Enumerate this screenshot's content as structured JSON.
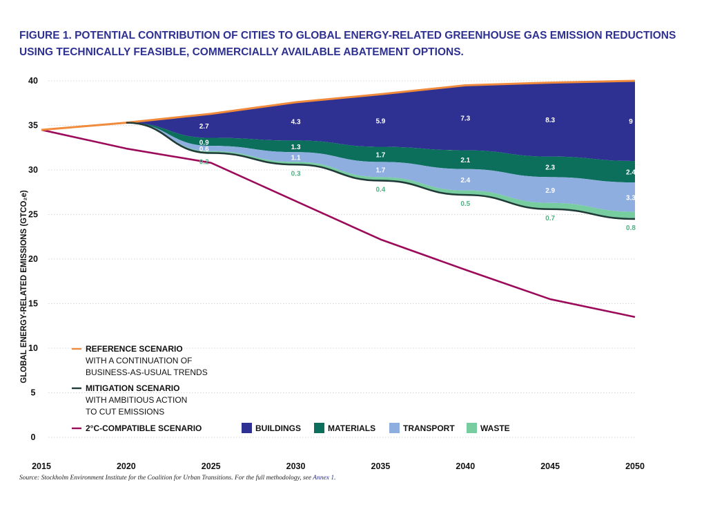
{
  "title_line1": "FIGURE 1. POTENTIAL CONTRIBUTION OF CITIES TO GLOBAL ENERGY-RELATED GREENHOUSE GAS EMISSION REDUCTIONS",
  "title_line2": "USING TECHNICALLY FEASIBLE, COMMERCIALLY AVAILABLE ABATEMENT OPTIONS.",
  "source_text": "Source: Stockholm Environment Institute for the Coalition for Urban Transitions. For the full methodology, see ",
  "source_link": "Annex 1",
  "source_end": ".",
  "chart_data": {
    "type": "area",
    "ylabel": "GLOBAL ENERGY-RELATED EMISSIONS (GTCO₂e)",
    "ylim": [
      0,
      40
    ],
    "yticks": [
      0,
      5,
      10,
      15,
      20,
      25,
      30,
      35,
      40
    ],
    "xticks": [
      2015,
      2020,
      2025,
      2030,
      2035,
      2040,
      2045,
      2050
    ],
    "xlim": [
      2015,
      2050
    ],
    "grid": "horizontal dotted",
    "legend": [
      {
        "key": "reference",
        "label": "REFERENCE SCENARIO",
        "sublabel1": "WITH A CONTINUATION OF",
        "sublabel2": "BUSINESS-AS-USUAL TRENDS",
        "color": "#f08a3c"
      },
      {
        "key": "mitigation",
        "label": "MITIGATION SCENARIO",
        "sublabel1": "WITH AMBITIOUS ACTION",
        "sublabel2": "TO CUT EMISSIONS",
        "color": "#1f3a37"
      },
      {
        "key": "twoc",
        "label": "2°C-COMPATIBLE SCENARIO",
        "color": "#9b0b5a"
      }
    ],
    "sector_legend": [
      {
        "label": "BUILDINGS",
        "color": "#2e3192"
      },
      {
        "label": "MATERIALS",
        "color": "#0b6f5c"
      },
      {
        "label": "TRANSPORT",
        "color": "#8faee0"
      },
      {
        "label": "WASTE",
        "color": "#77cca0"
      }
    ],
    "reference": {
      "x": [
        2015,
        2020,
        2025,
        2030,
        2035,
        2040,
        2045,
        2050
      ],
      "y": [
        34.5,
        35.3,
        36.3,
        37.6,
        38.5,
        39.5,
        39.8,
        40.0
      ]
    },
    "two_degree": {
      "x": [
        2015,
        2020,
        2025,
        2030,
        2035,
        2040,
        2045,
        2050
      ],
      "y": [
        34.5,
        32.4,
        30.8,
        26.5,
        22.2,
        18.8,
        15.5,
        13.5
      ]
    },
    "sectors": {
      "x": [
        2025,
        2030,
        2035,
        2040,
        2045,
        2050
      ],
      "buildings": [
        2.7,
        4.3,
        5.9,
        7.3,
        8.3,
        9.0
      ],
      "materials": [
        0.9,
        1.3,
        1.7,
        2.1,
        2.3,
        2.4
      ],
      "transport": [
        0.6,
        1.1,
        1.7,
        2.4,
        2.9,
        3.3
      ],
      "waste": [
        0.2,
        0.3,
        0.4,
        0.5,
        0.7,
        0.8
      ]
    },
    "mitigation_start": 2020
  }
}
